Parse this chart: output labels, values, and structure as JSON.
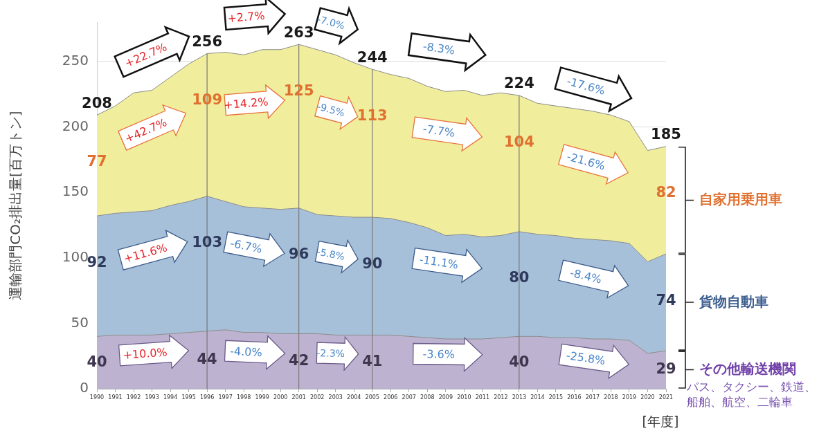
{
  "chart_data": {
    "type": "area",
    "stacked": true,
    "ylabel": "運輸部門CO₂排出量[百万トン]",
    "xlabel": "[年度]",
    "grid": "y",
    "legend": false,
    "categories": [
      "1990",
      "1991",
      "1992",
      "1993",
      "1994",
      "1995",
      "1996",
      "1997",
      "1998",
      "1999",
      "2000",
      "2001",
      "2002",
      "2003",
      "2004",
      "2005",
      "2006",
      "2007",
      "2008",
      "2009",
      "2010",
      "2011",
      "2012",
      "2013",
      "2014",
      "2015",
      "2016",
      "2017",
      "2018",
      "2019",
      "2020",
      "2021"
    ],
    "ylim": [
      0,
      280
    ],
    "yticks": [
      0,
      50,
      100,
      150,
      200,
      250
    ],
    "series": [
      {
        "name": "その他輸送機関",
        "color": "#bdb3d0",
        "values": [
          40,
          41,
          41,
          41,
          42,
          43,
          44,
          45,
          43,
          43,
          42,
          42,
          42,
          41,
          41,
          41,
          41,
          40,
          39,
          38,
          38,
          38,
          39,
          40,
          40,
          39,
          39,
          38,
          38,
          37,
          27,
          29
        ],
        "value_labels": [
          "40",
          null,
          null,
          null,
          null,
          null,
          "44",
          null,
          null,
          null,
          null,
          "42",
          null,
          null,
          null,
          "41",
          null,
          null,
          null,
          null,
          null,
          null,
          null,
          "40",
          null,
          null,
          null,
          null,
          null,
          null,
          null,
          "29"
        ]
      },
      {
        "name": "貨物自動車",
        "color": "#a7c0da",
        "values": [
          92,
          93,
          94,
          95,
          98,
          100,
          103,
          98,
          96,
          95,
          95,
          96,
          91,
          91,
          90,
          90,
          89,
          87,
          84,
          79,
          80,
          78,
          78,
          80,
          78,
          78,
          76,
          76,
          75,
          74,
          70,
          74
        ],
        "value_labels": [
          "92",
          null,
          null,
          null,
          null,
          null,
          "103",
          null,
          null,
          null,
          null,
          "96",
          null,
          null,
          null,
          "90",
          null,
          null,
          null,
          null,
          null,
          null,
          null,
          "80",
          null,
          null,
          null,
          null,
          null,
          null,
          null,
          "74"
        ]
      },
      {
        "name": "自家用乗用車",
        "color": "#f0ee9d",
        "values": [
          77,
          82,
          91,
          92,
          98,
          105,
          109,
          114,
          116,
          121,
          122,
          125,
          126,
          123,
          118,
          113,
          110,
          110,
          108,
          110,
          110,
          108,
          109,
          104,
          100,
          99,
          99,
          98,
          96,
          93,
          85,
          82
        ],
        "value_labels": [
          "77",
          null,
          null,
          null,
          null,
          null,
          "109",
          null,
          null,
          null,
          null,
          "125",
          null,
          null,
          null,
          "113",
          null,
          null,
          null,
          null,
          null,
          null,
          null,
          "104",
          null,
          null,
          null,
          null,
          null,
          null,
          null,
          "82"
        ]
      }
    ],
    "totals": [
      "208",
      null,
      null,
      null,
      null,
      null,
      "256",
      null,
      null,
      null,
      null,
      "263",
      null,
      null,
      null,
      "244",
      null,
      null,
      null,
      null,
      null,
      null,
      null,
      "224",
      null,
      null,
      null,
      null,
      null,
      null,
      null,
      "185"
    ],
    "ref_lines": [
      {
        "axis": "x",
        "value": "1996",
        "color": "#777777"
      },
      {
        "axis": "x",
        "value": "2001",
        "color": "#777777"
      },
      {
        "axis": "x",
        "value": "2005",
        "color": "#777777"
      },
      {
        "axis": "x",
        "value": "2013",
        "color": "#777777"
      }
    ],
    "annotations": [
      "+22.7%",
      "+2.7%",
      "-7.0%",
      "-8.3%",
      "-17.6%",
      "+42.7%",
      "+14.2%",
      "-9.5%",
      "-7.7%",
      "-21.6%",
      "+11.6%",
      "-6.7%",
      "-5.8%",
      "-11.1%",
      "-8.4%",
      "+10.0%",
      "-4.0%",
      "-2.3%",
      "-3.6%",
      "-25.8%",
      "バス、タクシー、鉄道、船舶、航空、二輪車"
    ]
  }
}
